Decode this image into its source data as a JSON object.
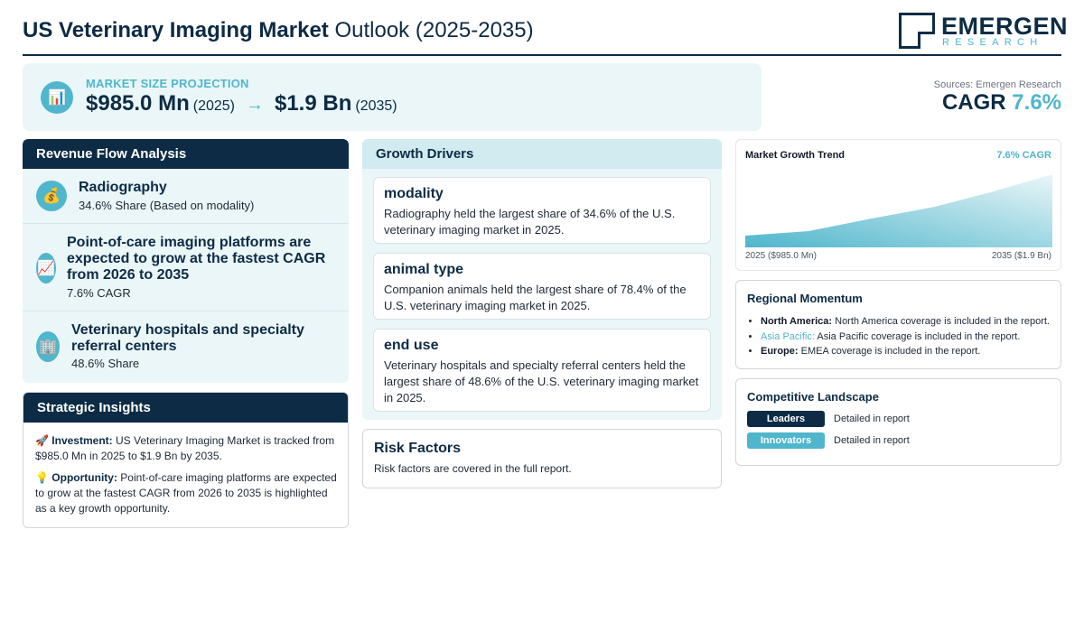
{
  "header": {
    "title_bold": "US Veterinary Imaging Market",
    "title_rest": "Outlook (2025-2035)",
    "logo_main": "EMERGEN",
    "logo_sub": "RESEARCH"
  },
  "projection": {
    "label": "MARKET SIZE PROJECTION",
    "icon": "bar-chart-icon",
    "start_value": "$985.0 Mn",
    "start_year": "(2025)",
    "arrow": "→",
    "end_value": "$1.9 Bn",
    "end_year": "(2035)"
  },
  "sources": "Sources: Emergen Research",
  "cagr": {
    "label": "CAGR",
    "value": "7.6%"
  },
  "revenue_flow": {
    "title": "Revenue Flow Analysis",
    "items": [
      {
        "icon": "money-bag-icon",
        "title": "Radiography",
        "subtitle": "34.6% Share (Based on modality)"
      },
      {
        "icon": "chart-increasing-icon",
        "title": "Point-of-care imaging platforms are expected to grow at the fastest CAGR from 2026 to 2035",
        "subtitle": "7.6% CAGR"
      },
      {
        "icon": "building-icon",
        "title": "Veterinary hospitals and specialty referral centers",
        "subtitle": "48.6% Share"
      }
    ]
  },
  "strategic_insights": {
    "title": "Strategic Insights",
    "items": [
      {
        "icon": "rocket-icon",
        "label": "Investment:",
        "text": "US Veterinary Imaging Market is tracked from $985.0 Mn in 2025 to $1.9 Bn by 2035."
      },
      {
        "icon": "light-bulb-icon",
        "label": "Opportunity:",
        "text": "Point-of-care imaging platforms are expected to grow at the fastest CAGR from 2026 to 2035 is highlighted as a key growth opportunity."
      }
    ]
  },
  "growth_drivers": {
    "title": "Growth Drivers",
    "items": [
      {
        "title": "modality",
        "text": "Radiography held the largest share of 34.6% of the U.S. veterinary imaging market in 2025."
      },
      {
        "title": "animal type",
        "text": "Companion animals held the largest share of 78.4% of the U.S. veterinary imaging market in 2025."
      },
      {
        "title": "end use",
        "text": "Veterinary hospitals and specialty referral centers held the largest share of 48.6% of the U.S. veterinary imaging market in 2025."
      }
    ]
  },
  "risk_factors": {
    "title": "Risk Factors",
    "text": "Risk factors are covered in the full report."
  },
  "market_trend": {
    "title": "Market Growth Trend",
    "cagr_label": "7.6% CAGR",
    "start_label": "2025 ($985.0 Mn)",
    "end_label": "2035 ($1.9 Bn)",
    "colors": {
      "top": "#4fb6cc",
      "bottom": "#eaf6f8"
    }
  },
  "regional_momentum": {
    "title": "Regional Momentum",
    "items": [
      {
        "region": "North America:",
        "text": "North America coverage is included in the report."
      },
      {
        "region": "Asia Pacific:",
        "text": "Asia Pacific coverage is included in the report."
      },
      {
        "region": "Europe:",
        "text": "EMEA coverage is included in the report."
      }
    ]
  },
  "competitive_landscape": {
    "title": "Competitive Landscape",
    "items": [
      {
        "badge": "Leaders",
        "color": "#0d2b45",
        "text": "Detailed in report"
      },
      {
        "badge": "Innovators",
        "color": "#4fb6cc",
        "text": "Detailed in report"
      }
    ]
  }
}
